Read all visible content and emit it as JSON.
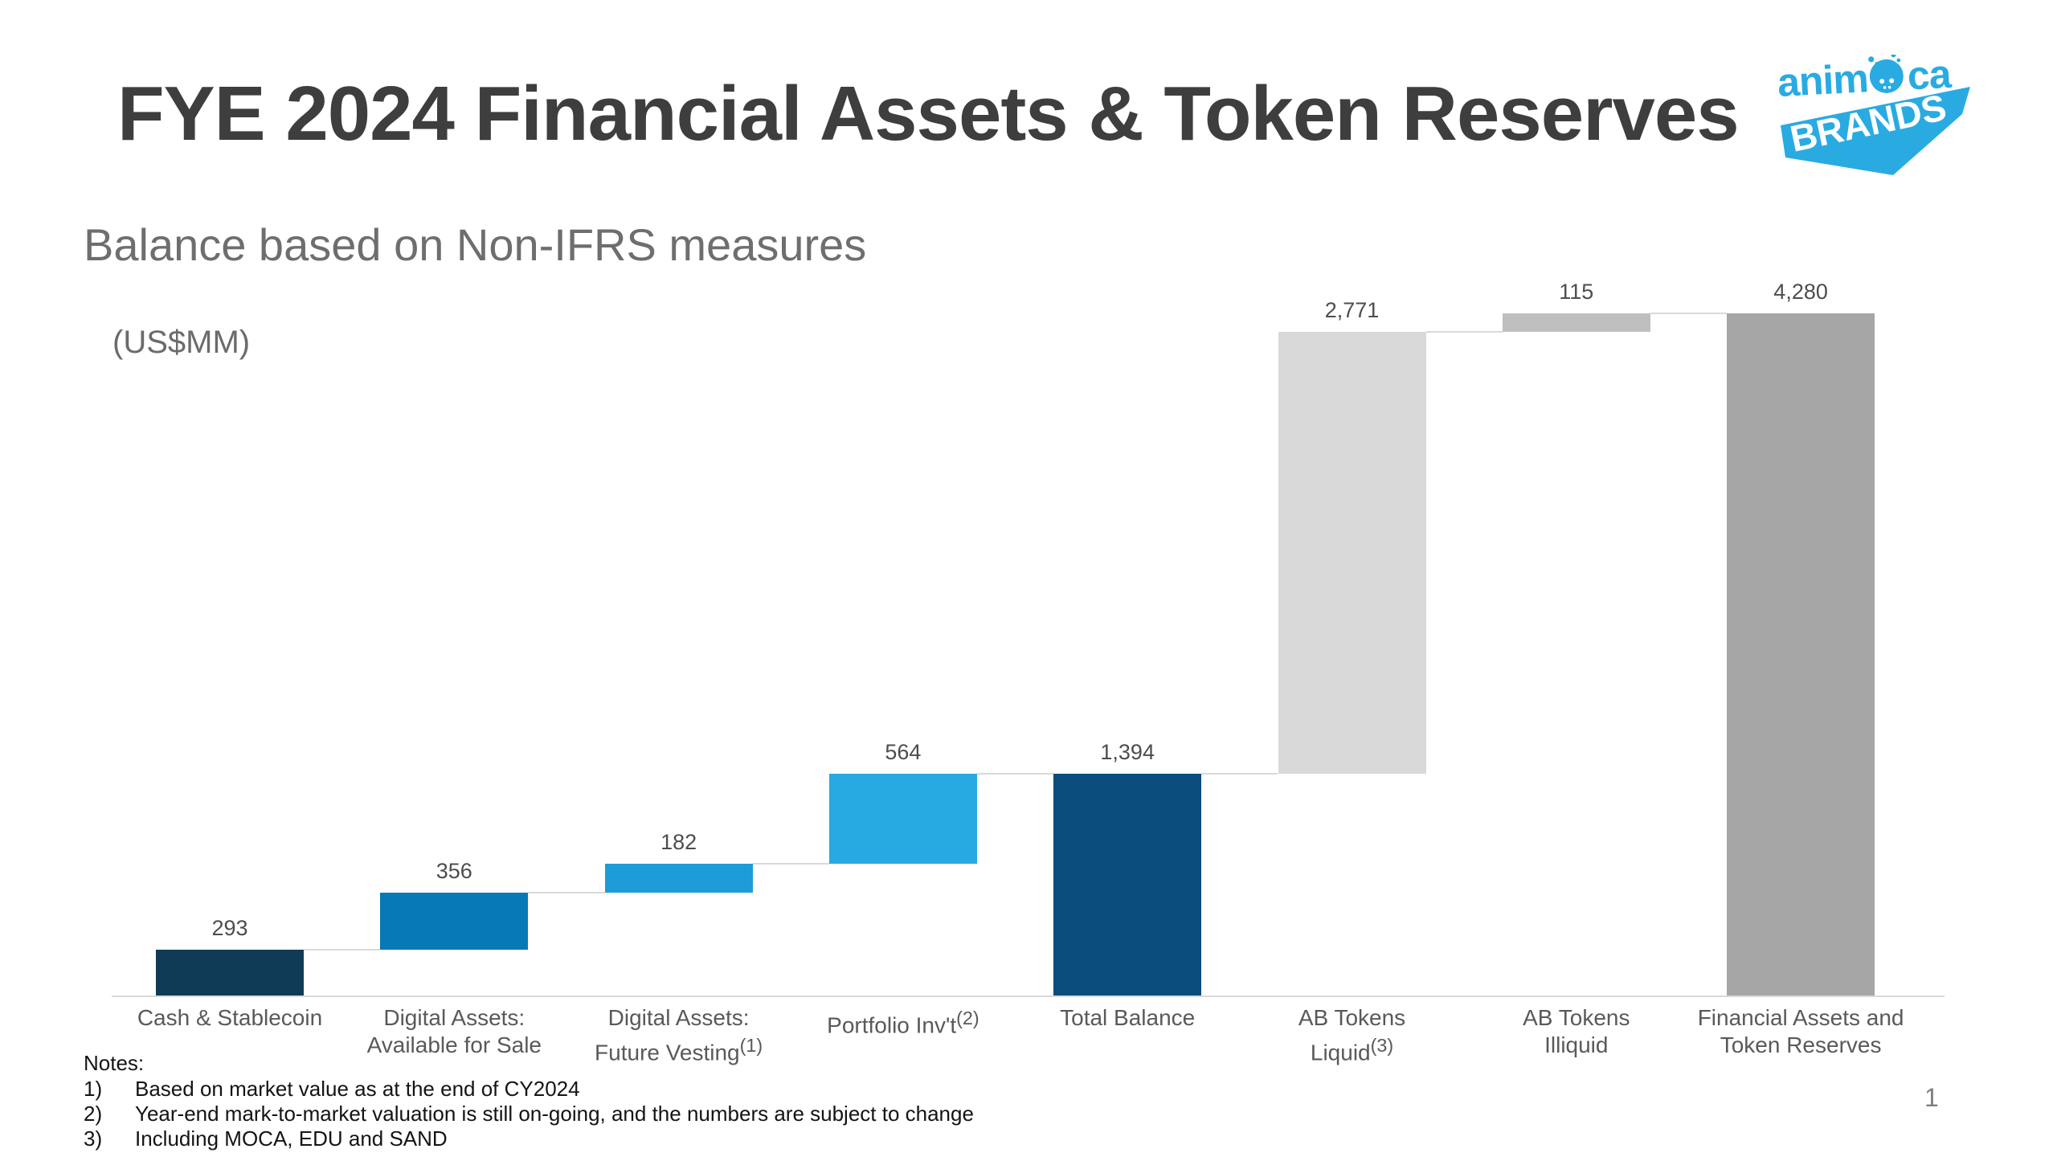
{
  "slide": {
    "title": "FYE 2024 Financial Assets & Token Reserves",
    "subtitle": "Balance based on Non-IFRS measures",
    "units_label": "(US$MM)",
    "page_number": "1"
  },
  "logo": {
    "name": "Animoca Brands",
    "word_part1": "anim",
    "word_part2": "ca",
    "word_bottom": "BRANDS",
    "brand_color": "#29ABE2"
  },
  "notes": {
    "heading": "Notes:",
    "items": [
      {
        "num": "1)",
        "text": "Based on market value as at the end of CY2024"
      },
      {
        "num": "2)",
        "text": "Year-end mark-to-market valuation is still on-going, and the numbers are subject to change"
      },
      {
        "num": "3)",
        "text": "Including MOCA, EDU and SAND"
      }
    ]
  },
  "chart_data": {
    "type": "bar",
    "subtype": "waterfall",
    "title": "FYE 2024 Financial Assets & Token Reserves",
    "units": "US$MM",
    "ylim": [
      0,
      4280
    ],
    "grid": false,
    "legend": false,
    "axis_color": "#D9D9D9",
    "connector_color": "#D9D9D9",
    "value_label_color": "#4D4D4D",
    "category_label_color": "#595959",
    "categories": [
      "Cash & Stablecoin",
      "Digital Assets: Available for Sale",
      "Digital Assets: Future Vesting (1)",
      "Portfolio Inv't (2)",
      "Total Balance",
      "AB Tokens Liquid (3)",
      "AB Tokens Illiquid",
      "Financial Assets and Token Reserves"
    ],
    "values": [
      293,
      356,
      182,
      564,
      1394,
      2771,
      115,
      4280
    ],
    "bars": [
      {
        "label_lines": [
          "Cash & Stablecoin"
        ],
        "footnote": null,
        "footnote_line": null,
        "value": 293,
        "value_label": "293",
        "role": "increase",
        "start": 0,
        "end": 293,
        "color": "#0F3B56"
      },
      {
        "label_lines": [
          "Digital Assets:",
          "Available for Sale"
        ],
        "footnote": null,
        "footnote_line": null,
        "value": 356,
        "value_label": "356",
        "role": "increase",
        "start": 293,
        "end": 649,
        "color": "#0779B4"
      },
      {
        "label_lines": [
          "Digital Assets:",
          "Future Vesting"
        ],
        "footnote": "(1)",
        "footnote_line": 1,
        "value": 182,
        "value_label": "182",
        "role": "increase",
        "start": 649,
        "end": 831,
        "color": "#1E9CD7"
      },
      {
        "label_lines": [
          "Portfolio Inv't"
        ],
        "footnote": "(2)",
        "footnote_line": 0,
        "value": 564,
        "value_label": "564",
        "role": "increase",
        "start": 831,
        "end": 1395,
        "color": "#27A9E1"
      },
      {
        "label_lines": [
          "Total Balance"
        ],
        "footnote": null,
        "footnote_line": null,
        "value": 1394,
        "value_label": "1,394",
        "role": "total",
        "start": 0,
        "end": 1394,
        "color": "#0B4D7D"
      },
      {
        "label_lines": [
          "AB Tokens",
          "Liquid"
        ],
        "footnote": "(3)",
        "footnote_line": 1,
        "value": 2771,
        "value_label": "2,771",
        "role": "increase",
        "start": 1394,
        "end": 4165,
        "color": "#D9D9D9"
      },
      {
        "label_lines": [
          "AB Tokens",
          "Illiquid"
        ],
        "footnote": null,
        "footnote_line": null,
        "value": 115,
        "value_label": "115",
        "role": "increase",
        "start": 4165,
        "end": 4280,
        "color": "#BFBFBF"
      },
      {
        "label_lines": [
          "Financial Assets and",
          "Token Reserves"
        ],
        "footnote": null,
        "footnote_line": null,
        "value": 4280,
        "value_label": "4,280",
        "role": "total",
        "start": 0,
        "end": 4280,
        "color": "#A6A6A6"
      }
    ]
  }
}
